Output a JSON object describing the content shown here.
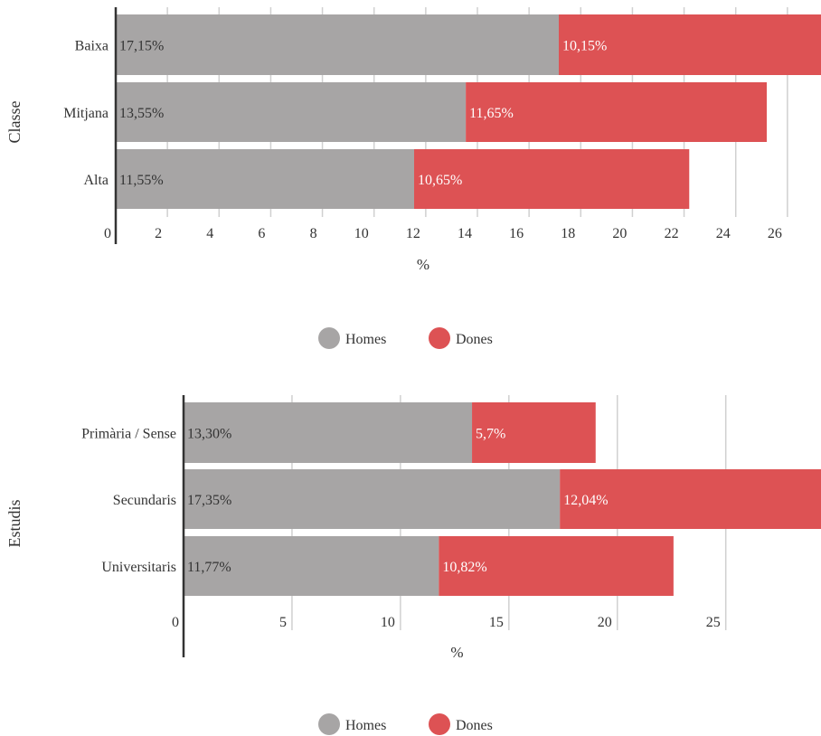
{
  "colors": {
    "homes": "#a7a5a5",
    "dones": "#dd5254",
    "grid": "#d0d0d0",
    "axis": "#333333",
    "text": "#333333",
    "label_on_red": "#ffffff"
  },
  "chart_data": [
    {
      "type": "bar",
      "orientation": "horizontal",
      "stacked": true,
      "categories": [
        "Baixa",
        "Mitjana",
        "Alta"
      ],
      "series": [
        {
          "name": "Homes",
          "values": [
            17.15,
            13.55,
            11.55
          ],
          "labels": [
            "17,15%",
            "13,55%",
            "11,55%"
          ]
        },
        {
          "name": "Dones",
          "values": [
            10.15,
            11.65,
            10.65
          ],
          "labels": [
            "10,15%",
            "11,65%",
            "10,65%"
          ]
        }
      ],
      "xlabel": "%",
      "ylabel": "Classe",
      "xlim": [
        0,
        27.3
      ],
      "xticks": [
        0,
        2,
        4,
        6,
        8,
        10,
        12,
        14,
        16,
        18,
        20,
        22,
        24,
        26
      ],
      "grid": true,
      "legend": "bottom"
    },
    {
      "type": "bar",
      "orientation": "horizontal",
      "stacked": true,
      "categories": [
        "Primària / Sense",
        "Secundaris",
        "Universitaris"
      ],
      "series": [
        {
          "name": "Homes",
          "values": [
            13.3,
            17.35,
            11.77
          ],
          "labels": [
            "13,30%",
            "17,35%",
            "11,77%"
          ]
        },
        {
          "name": "Dones",
          "values": [
            5.7,
            12.04,
            10.82
          ],
          "labels": [
            "5,7%",
            "12,04%",
            "10,82%"
          ]
        }
      ],
      "xlabel": "%",
      "ylabel": "Estudis",
      "xlim": [
        0,
        29.39
      ],
      "xticks": [
        0,
        5,
        10,
        15,
        20,
        25
      ],
      "grid": true,
      "legend": "bottom"
    }
  ]
}
